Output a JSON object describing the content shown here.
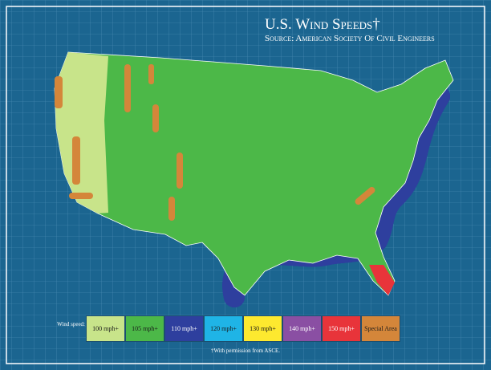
{
  "header": {
    "title": "U.S. Wind Speeds†",
    "source": "Source: American Society Of Civil Engineers"
  },
  "legend": {
    "label": "Wind speed:",
    "items": [
      {
        "label": "100 mph+",
        "color": "#c8e48a"
      },
      {
        "label": "105 mph+",
        "color": "#4cb848"
      },
      {
        "label": "110 mph+",
        "color": "#2e3f9e"
      },
      {
        "label": "120 mph+",
        "color": "#1fb4e6"
      },
      {
        "label": "130 mph+",
        "color": "#fde92f"
      },
      {
        "label": "140 mph+",
        "color": "#8a4fa3"
      },
      {
        "label": "150 mph+",
        "color": "#e8343a"
      },
      {
        "label": "Special Area",
        "color": "#d4863a"
      }
    ]
  },
  "footnote": "†With permission from ASCE."
}
